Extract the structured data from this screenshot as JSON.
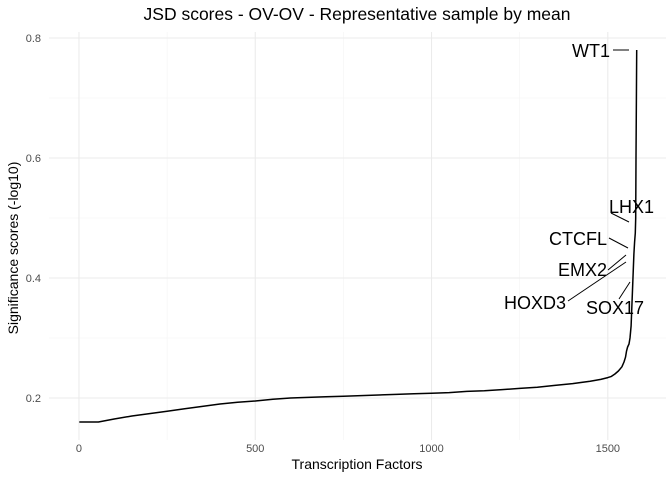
{
  "chart_data": {
    "type": "line",
    "title": "JSD scores - OV-OV - Representative sample by mean",
    "xlabel": "Transcription Factors",
    "ylabel": "Significance scores (-log10)",
    "xlim": [
      -85,
      1665
    ],
    "ylim": [
      0.13,
      0.81
    ],
    "x_ticks": [
      0,
      500,
      1000,
      1500
    ],
    "y_ticks": [
      0.2,
      0.4,
      0.6,
      0.8
    ],
    "x_tick_labels": [
      "0",
      "500",
      "1000",
      "1500"
    ],
    "y_tick_labels": [
      "0.2",
      "0.4",
      "0.6",
      "0.8"
    ],
    "grid": true,
    "legend": "none",
    "series": [
      {
        "color": "#000000",
        "points": [
          [
            1,
            0.16
          ],
          [
            55,
            0.16
          ],
          [
            100,
            0.165
          ],
          [
            150,
            0.17
          ],
          [
            200,
            0.174
          ],
          [
            250,
            0.178
          ],
          [
            300,
            0.182
          ],
          [
            350,
            0.186
          ],
          [
            400,
            0.19
          ],
          [
            450,
            0.193
          ],
          [
            500,
            0.195
          ],
          [
            550,
            0.198
          ],
          [
            600,
            0.2
          ],
          [
            650,
            0.201
          ],
          [
            700,
            0.202
          ],
          [
            750,
            0.203
          ],
          [
            800,
            0.204
          ],
          [
            850,
            0.205
          ],
          [
            900,
            0.206
          ],
          [
            950,
            0.207
          ],
          [
            1000,
            0.208
          ],
          [
            1050,
            0.209
          ],
          [
            1100,
            0.211
          ],
          [
            1150,
            0.212
          ],
          [
            1200,
            0.214
          ],
          [
            1250,
            0.216
          ],
          [
            1300,
            0.218
          ],
          [
            1350,
            0.221
          ],
          [
            1400,
            0.224
          ],
          [
            1450,
            0.228
          ],
          [
            1480,
            0.231
          ],
          [
            1500,
            0.234
          ],
          [
            1510,
            0.236
          ],
          [
            1520,
            0.24
          ],
          [
            1530,
            0.245
          ],
          [
            1540,
            0.252
          ],
          [
            1546,
            0.26
          ],
          [
            1550,
            0.268
          ],
          [
            1553,
            0.278
          ],
          [
            1556,
            0.285
          ],
          [
            1560,
            0.29
          ],
          [
            1563,
            0.3
          ],
          [
            1566,
            0.32
          ],
          [
            1568,
            0.35
          ],
          [
            1570,
            0.38
          ],
          [
            1572,
            0.41
          ],
          [
            1574,
            0.44
          ],
          [
            1576,
            0.46
          ],
          [
            1578,
            0.475
          ],
          [
            1579,
            0.5
          ],
          [
            1580,
            0.6
          ],
          [
            1581,
            0.7
          ],
          [
            1582,
            0.78
          ]
        ]
      }
    ],
    "annotations": [
      {
        "label": "WT1",
        "x": 1582,
        "y": 0.778
      },
      {
        "label": "LHX1",
        "x": 1578,
        "y": 0.475
      },
      {
        "label": "CTCFL",
        "x": 1554,
        "y": 0.447
      },
      {
        "label": "EMX2",
        "x": 1552,
        "y": 0.43
      },
      {
        "label": "HOXD3",
        "x": 1550,
        "y": 0.42
      },
      {
        "label": "SOX17",
        "x": 1548,
        "y": 0.39
      }
    ]
  }
}
